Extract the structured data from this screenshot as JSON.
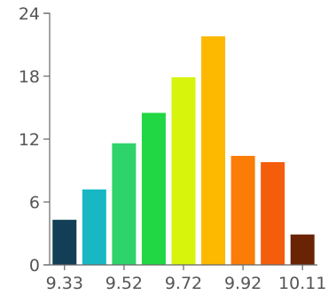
{
  "chart_data": {
    "type": "bar",
    "title": "",
    "xlabel": "",
    "ylabel": "",
    "ylim": [
      0,
      24
    ],
    "yticks": [
      "0",
      "6",
      "12",
      "18",
      "24"
    ],
    "xticks": [
      "9.33",
      "9.52",
      "9.72",
      "9.92",
      "10.11"
    ],
    "grid": false,
    "legend": "none",
    "bars": [
      {
        "value": 4.3,
        "color": "#123f55"
      },
      {
        "value": 7.2,
        "color": "#17b8c3"
      },
      {
        "value": 11.6,
        "color": "#2ed36a"
      },
      {
        "value": 14.5,
        "color": "#21d743"
      },
      {
        "value": 17.9,
        "color": "#d7f50c"
      },
      {
        "value": 21.8,
        "color": "#fdb800"
      },
      {
        "value": 10.4,
        "color": "#fb7d07"
      },
      {
        "value": 9.8,
        "color": "#f45d0c"
      },
      {
        "value": 2.9,
        "color": "#6a2405"
      }
    ]
  }
}
